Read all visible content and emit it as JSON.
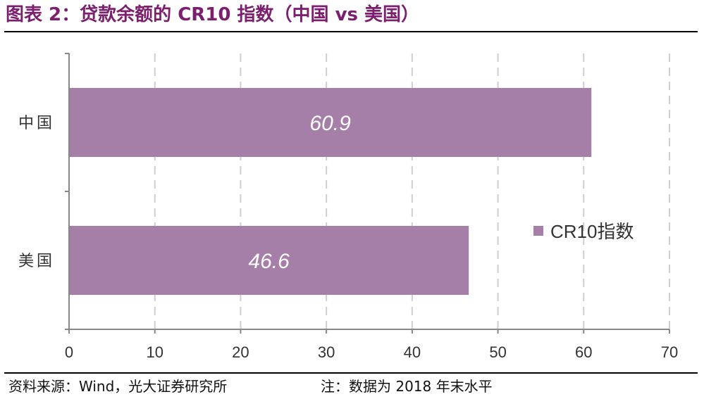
{
  "header": {
    "title": "图表 2：贷款余额的 CR10 指数（中国 vs 美国）"
  },
  "footer": {
    "source": "资料来源：Wind，光大证券研究所",
    "note": "注：数据为 2018 年末水平"
  },
  "colors": {
    "bar": "#a67fa8",
    "title": "#7b1f6e",
    "grid": "#cfcfcf",
    "axis": "#888888"
  },
  "chart_data": {
    "type": "bar",
    "orientation": "horizontal",
    "categories": [
      "中国",
      "美国"
    ],
    "series": [
      {
        "name": "CR10指数",
        "values": [
          60.9,
          46.6
        ]
      }
    ],
    "data_labels": [
      "60.9",
      "46.6"
    ],
    "xlim": [
      0,
      70
    ],
    "xticks": [
      0,
      10,
      20,
      30,
      40,
      50,
      60,
      70
    ],
    "xtick_labels": [
      "0",
      "10",
      "20",
      "30",
      "40",
      "50",
      "60",
      "70"
    ],
    "grid": "vertical dashed",
    "legend_position": "right"
  }
}
